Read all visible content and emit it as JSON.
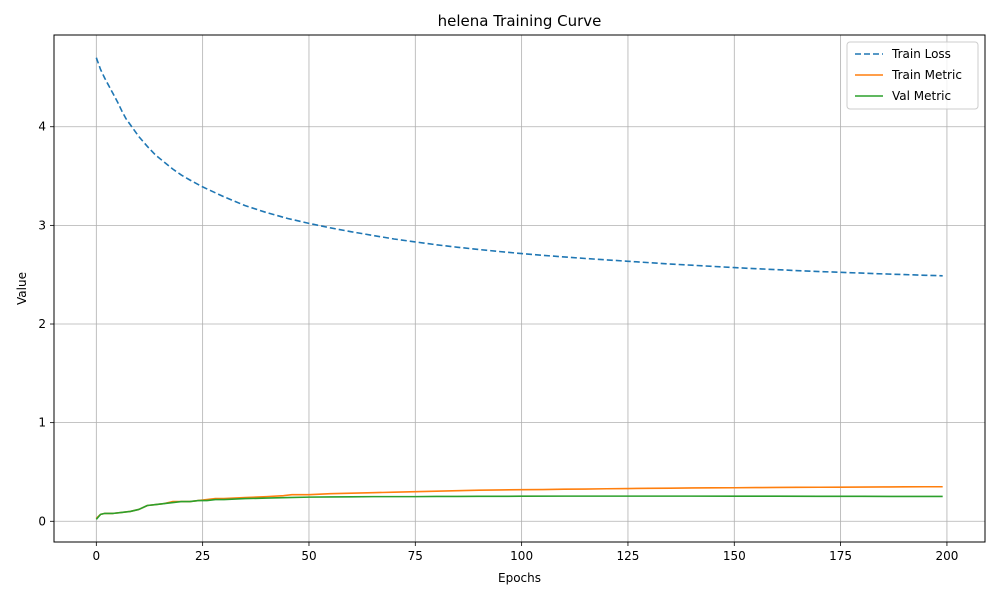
{
  "chart_data": {
    "type": "line",
    "title": "helena Training Curve",
    "xlabel": "Epochs",
    "ylabel": "Value",
    "xlim": [
      -9.95,
      208.95
    ],
    "ylim": [
      -0.21,
      4.93
    ],
    "xticks": [
      0,
      25,
      50,
      75,
      100,
      125,
      150,
      175,
      200
    ],
    "yticks": [
      0,
      1,
      2,
      3,
      4
    ],
    "grid": true,
    "legend_position": "upper right",
    "series": [
      {
        "name": "Train Loss",
        "color": "#1f77b4",
        "style": "dashed",
        "x": [
          0,
          1,
          2,
          3,
          4,
          5,
          6,
          7,
          8,
          9,
          10,
          12,
          14,
          16,
          18,
          20,
          22,
          25,
          28,
          30,
          35,
          40,
          45,
          50,
          55,
          60,
          65,
          70,
          75,
          80,
          85,
          90,
          95,
          100,
          105,
          110,
          115,
          120,
          125,
          130,
          135,
          140,
          145,
          150,
          155,
          160,
          165,
          170,
          175,
          180,
          185,
          190,
          195,
          199
        ],
        "values": [
          4.7,
          4.58,
          4.49,
          4.41,
          4.33,
          4.25,
          4.16,
          4.08,
          4.02,
          3.96,
          3.9,
          3.8,
          3.71,
          3.64,
          3.57,
          3.51,
          3.46,
          3.39,
          3.33,
          3.29,
          3.2,
          3.13,
          3.07,
          3.02,
          2.975,
          2.935,
          2.898,
          2.862,
          2.832,
          2.803,
          2.778,
          2.755,
          2.734,
          2.714,
          2.696,
          2.68,
          2.664,
          2.65,
          2.636,
          2.622,
          2.608,
          2.596,
          2.584,
          2.572,
          2.561,
          2.551,
          2.541,
          2.532,
          2.524,
          2.516,
          2.508,
          2.501,
          2.494,
          2.489
        ]
      },
      {
        "name": "Train Metric",
        "color": "#ff7f0e",
        "style": "solid",
        "x": [
          0,
          1,
          2,
          4,
          6,
          8,
          10,
          12,
          14,
          16,
          18,
          20,
          22,
          24,
          26,
          28,
          30,
          35,
          40,
          44,
          46,
          50,
          55,
          60,
          65,
          70,
          75,
          80,
          85,
          90,
          95,
          100,
          105,
          110,
          115,
          120,
          125,
          130,
          135,
          140,
          145,
          150,
          155,
          160,
          165,
          170,
          175,
          180,
          185,
          190,
          195,
          199
        ],
        "values": [
          0.03,
          0.07,
          0.08,
          0.08,
          0.09,
          0.1,
          0.12,
          0.16,
          0.17,
          0.18,
          0.2,
          0.2,
          0.2,
          0.21,
          0.22,
          0.23,
          0.23,
          0.24,
          0.25,
          0.26,
          0.27,
          0.27,
          0.28,
          0.285,
          0.29,
          0.295,
          0.3,
          0.305,
          0.31,
          0.315,
          0.318,
          0.32,
          0.322,
          0.325,
          0.327,
          0.33,
          0.332,
          0.334,
          0.336,
          0.338,
          0.339,
          0.34,
          0.342,
          0.343,
          0.344,
          0.345,
          0.346,
          0.347,
          0.348,
          0.349,
          0.35,
          0.35
        ]
      },
      {
        "name": "Val Metric",
        "color": "#2ca02c",
        "style": "solid",
        "x": [
          0,
          1,
          2,
          4,
          6,
          8,
          10,
          12,
          14,
          16,
          18,
          20,
          22,
          24,
          26,
          28,
          30,
          35,
          40,
          45,
          50,
          55,
          60,
          65,
          70,
          75,
          80,
          85,
          90,
          95,
          100,
          110,
          120,
          130,
          140,
          150,
          160,
          170,
          180,
          190,
          199
        ],
        "values": [
          0.02,
          0.07,
          0.08,
          0.08,
          0.09,
          0.1,
          0.12,
          0.16,
          0.17,
          0.18,
          0.19,
          0.2,
          0.2,
          0.21,
          0.21,
          0.22,
          0.22,
          0.23,
          0.235,
          0.24,
          0.245,
          0.247,
          0.248,
          0.25,
          0.25,
          0.25,
          0.252,
          0.252,
          0.253,
          0.253,
          0.254,
          0.255,
          0.255,
          0.255,
          0.255,
          0.254,
          0.254,
          0.253,
          0.253,
          0.252,
          0.252
        ]
      }
    ]
  }
}
